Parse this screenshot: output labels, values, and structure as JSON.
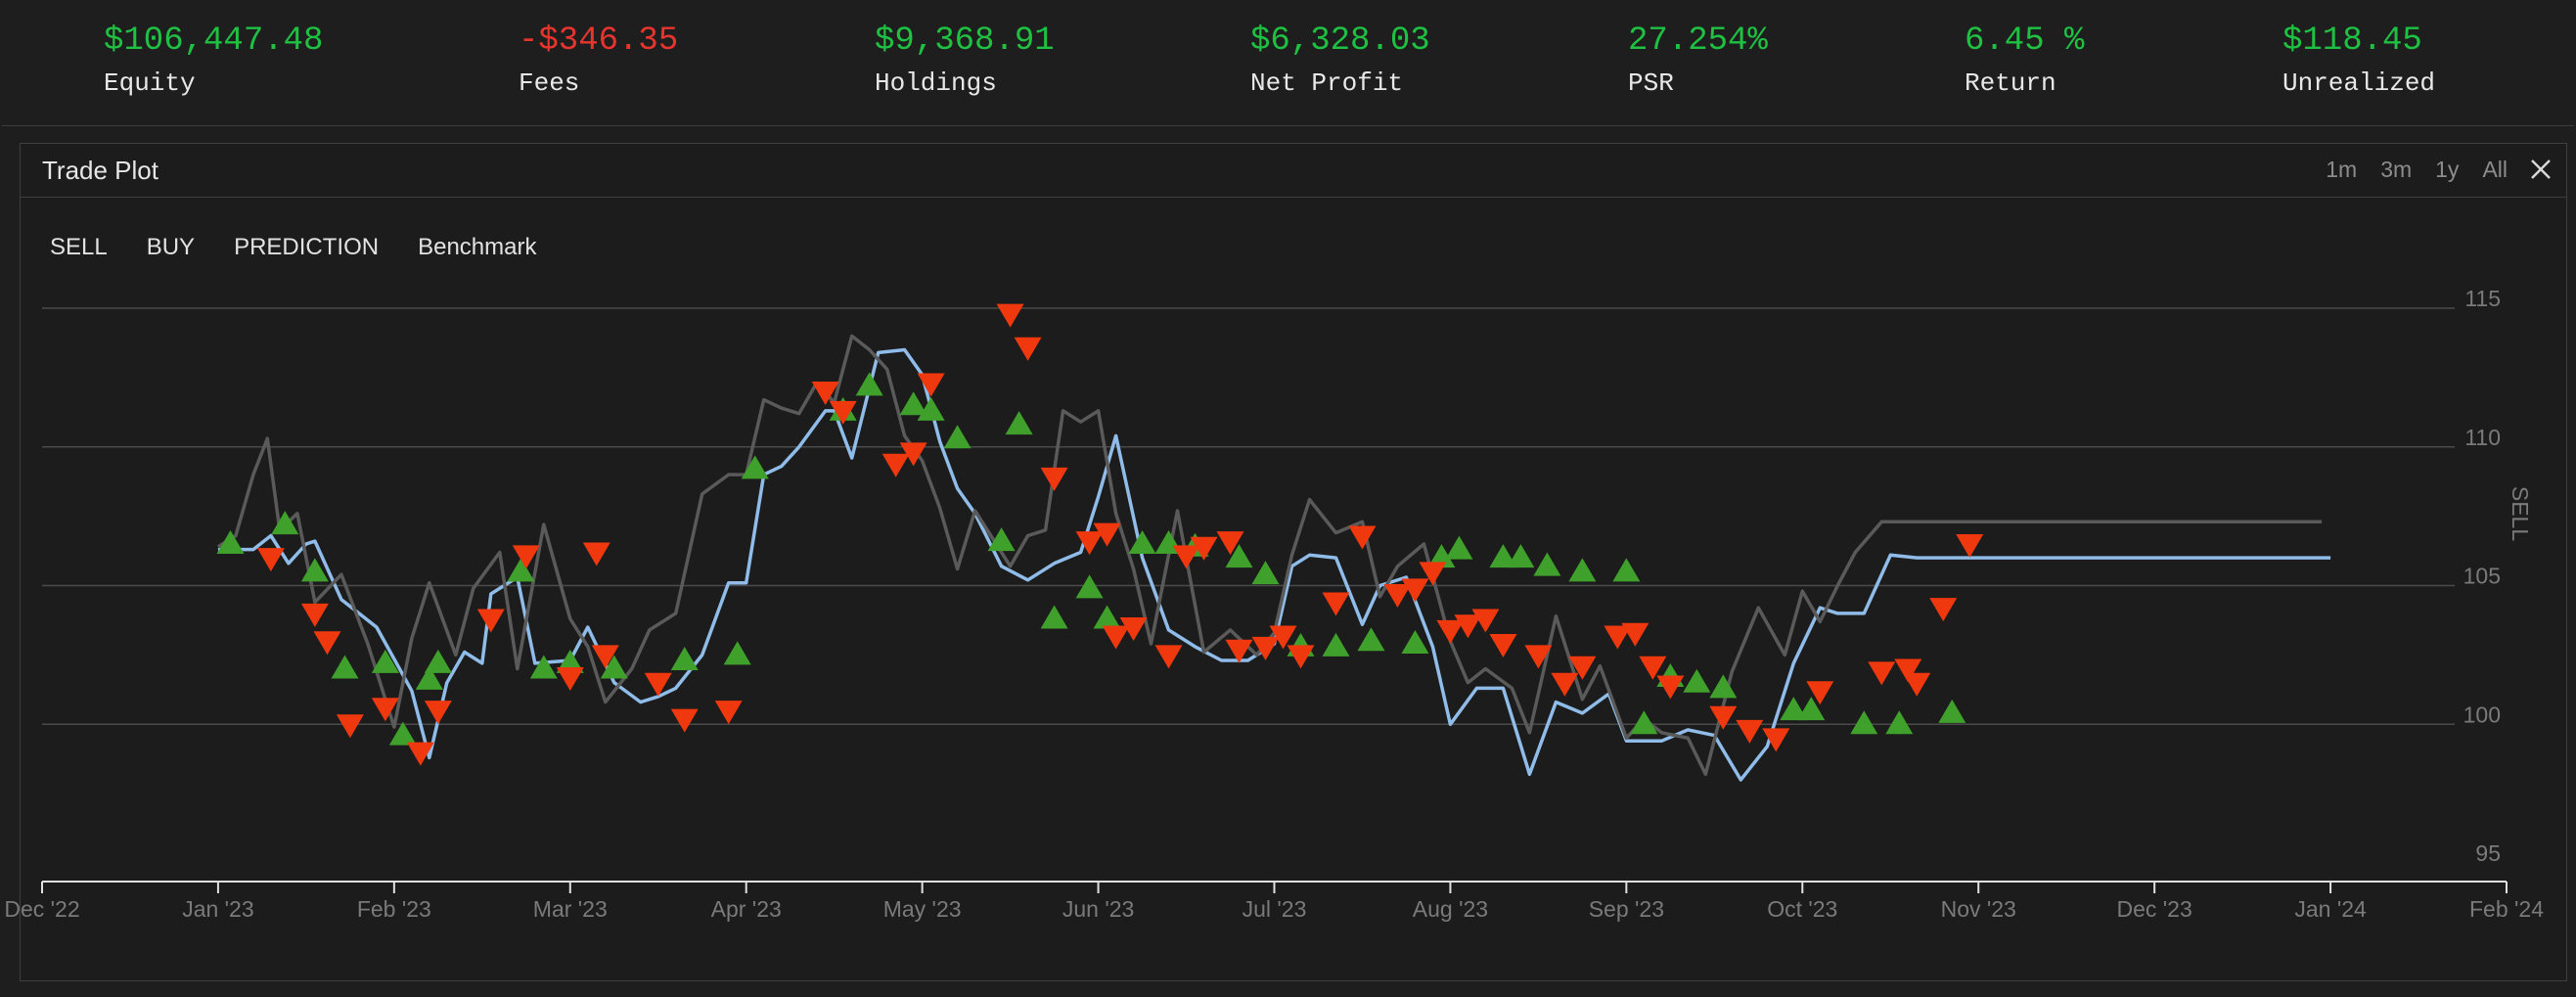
{
  "stats": [
    {
      "label": "Equity",
      "value": "$106,447.48",
      "color": "#1fc142"
    },
    {
      "label": "Fees",
      "value": "-$346.35",
      "color": "#e8342e"
    },
    {
      "label": "Holdings",
      "value": "$9,368.91",
      "color": "#1fc142"
    },
    {
      "label": "Net Profit",
      "value": "$6,328.03",
      "color": "#1fc142"
    },
    {
      "label": "PSR",
      "value": "27.254%",
      "color": "#1fc142"
    },
    {
      "label": "Return",
      "value": "6.45 %",
      "color": "#1fc142"
    },
    {
      "label": "Unrealized",
      "value": "$118.45",
      "color": "#1fc142"
    }
  ],
  "panel": {
    "title": "Trade Plot",
    "ranges": [
      "1m",
      "3m",
      "1y",
      "All"
    ],
    "close_icon": "close-icon",
    "legend": [
      "SELL",
      "BUY",
      "PREDICTION",
      "Benchmark"
    ],
    "right_axis_label": "SELL"
  },
  "chart_data": {
    "type": "line",
    "y_ticks": [
      95,
      100,
      105,
      110,
      115
    ],
    "ylim": [
      95,
      116
    ],
    "x_ticks": [
      "Dec '22",
      "Jan '23",
      "Feb '23",
      "Mar '23",
      "Apr '23",
      "May '23",
      "Jun '23",
      "Jul '23",
      "Aug '23",
      "Sep '23",
      "Oct '23",
      "Nov '23",
      "Dec '23",
      "Jan '24",
      "Feb '24"
    ],
    "grid": true,
    "colors": {
      "prediction": "#8fbce8",
      "benchmark": "#5a5a5a",
      "buy": "#3fa12b",
      "sell": "#f0380e"
    },
    "series": [
      {
        "name": "PREDICTION",
        "x": [
          1.0,
          1.2,
          1.3,
          1.4,
          1.5,
          1.55,
          1.7,
          1.9,
          2.1,
          2.2,
          2.3,
          2.4,
          2.5,
          2.55,
          2.7,
          2.8,
          3.0,
          3.1,
          3.25,
          3.4,
          3.5,
          3.6,
          3.75,
          3.9,
          4.0,
          4.1,
          4.2,
          4.3,
          4.45,
          4.5,
          4.6,
          4.75,
          4.9,
          5.0,
          5.1,
          5.2,
          5.3,
          5.45,
          5.6,
          5.75,
          5.9,
          6.0,
          6.1,
          6.25,
          6.4,
          6.55,
          6.7,
          6.85,
          7.0,
          7.1,
          7.2,
          7.35,
          7.5,
          7.6,
          7.75,
          7.9,
          8.0,
          8.15,
          8.3,
          8.45,
          8.6,
          8.75,
          8.9,
          9.0,
          9.2,
          9.35,
          9.5,
          9.65,
          9.8,
          9.95,
          10.1,
          10.2,
          10.35,
          10.5,
          10.65,
          10.75,
          10.9,
          11.0,
          11.1,
          11.25,
          11.4,
          11.5,
          11.6,
          11.75,
          11.9,
          12.0,
          12.1,
          12.25,
          12.4,
          12.5,
          12.6,
          12.75,
          12.85,
          13.0
        ],
        "y": [
          106.3,
          106.3,
          106.8,
          105.8,
          106.5,
          106.6,
          104.5,
          103.5,
          101.2,
          98.8,
          101.5,
          102.6,
          102.2,
          104.7,
          105.3,
          102.2,
          102.3,
          103.5,
          101.5,
          100.8,
          101.0,
          101.3,
          102.5,
          105.1,
          105.1,
          109.0,
          109.3,
          110.0,
          111.3,
          111.3,
          109.6,
          113.4,
          113.5,
          112.6,
          110.2,
          108.5,
          107.6,
          105.7,
          105.2,
          105.8,
          106.2,
          108.2,
          110.4,
          106.0,
          103.4,
          102.8,
          102.3,
          102.3,
          102.9,
          105.7,
          106.1,
          106.0,
          103.6,
          105.0,
          105.3,
          102.8,
          100.0,
          101.3,
          101.3,
          98.2,
          100.8,
          100.4,
          101.1,
          99.4,
          99.4,
          99.8,
          99.6,
          98.0,
          99.2,
          102.2,
          104.2,
          104.0,
          104.0,
          106.1,
          106.0,
          106.0,
          106.0,
          106.0,
          106.0,
          106.0,
          106.0,
          106.0,
          106.0,
          106.0,
          106.0,
          106.0,
          106.0,
          106.0,
          106.0,
          106.0,
          106.0,
          106.0,
          106.0,
          106.0
        ]
      },
      {
        "name": "Benchmark",
        "x": [
          1.0,
          1.1,
          1.2,
          1.28,
          1.35,
          1.45,
          1.55,
          1.7,
          1.85,
          2.0,
          2.1,
          2.2,
          2.35,
          2.45,
          2.6,
          2.7,
          2.85,
          3.0,
          3.1,
          3.2,
          3.35,
          3.45,
          3.6,
          3.75,
          3.9,
          4.0,
          4.1,
          4.2,
          4.3,
          4.4,
          4.5,
          4.6,
          4.7,
          4.8,
          4.9,
          5.0,
          5.1,
          5.2,
          5.3,
          5.4,
          5.5,
          5.6,
          5.7,
          5.8,
          5.9,
          6.0,
          6.1,
          6.2,
          6.3,
          6.45,
          6.6,
          6.75,
          6.9,
          7.0,
          7.1,
          7.2,
          7.35,
          7.5,
          7.6,
          7.7,
          7.85,
          8.0,
          8.1,
          8.2,
          8.35,
          8.45,
          8.6,
          8.75,
          8.85,
          9.0,
          9.1,
          9.2,
          9.35,
          9.45,
          9.6,
          9.75,
          9.9,
          10.0,
          10.1,
          10.2,
          10.3,
          10.45,
          10.55,
          10.7,
          10.85,
          10.95,
          11.1,
          11.25,
          11.35,
          11.5,
          11.6,
          11.75,
          11.9,
          12.0,
          12.1,
          12.25,
          12.4,
          12.5,
          12.6,
          12.75,
          12.85,
          12.95
        ],
        "y": [
          106.4,
          106.8,
          109.0,
          110.3,
          107.0,
          107.6,
          104.4,
          105.4,
          102.9,
          99.9,
          103.1,
          105.1,
          102.5,
          104.9,
          106.2,
          102.0,
          107.2,
          103.8,
          102.8,
          100.8,
          102.0,
          103.4,
          104.0,
          108.3,
          109.0,
          109.0,
          111.7,
          111.4,
          111.2,
          112.3,
          111.6,
          114.0,
          113.5,
          112.8,
          110.4,
          109.5,
          107.8,
          105.6,
          107.7,
          106.7,
          105.7,
          106.8,
          107.0,
          111.3,
          110.9,
          111.3,
          107.6,
          105.6,
          102.9,
          107.7,
          102.6,
          103.4,
          102.5,
          103.3,
          106.1,
          108.1,
          106.9,
          107.3,
          104.6,
          105.7,
          106.5,
          103.0,
          101.5,
          102.0,
          101.3,
          99.7,
          103.9,
          100.9,
          102.1,
          99.5,
          100.2,
          99.7,
          99.5,
          98.2,
          101.9,
          104.2,
          102.5,
          104.8,
          103.7,
          105.0,
          106.2,
          107.3,
          107.3,
          107.3,
          107.3,
          107.3,
          107.3,
          107.3,
          107.3,
          107.3,
          107.3,
          107.3,
          107.3,
          107.3,
          107.3,
          107.3,
          107.3,
          107.3,
          107.3,
          107.3,
          107.3,
          107.3
        ]
      },
      {
        "name": "BUY",
        "x": [
          1.07,
          1.38,
          1.55,
          1.72,
          1.95,
          2.05,
          2.2,
          2.25,
          2.72,
          2.85,
          3.0,
          3.25,
          3.65,
          3.95,
          4.05,
          4.55,
          4.7,
          4.95,
          5.05,
          5.2,
          5.45,
          5.55,
          5.75,
          5.95,
          6.05,
          6.25,
          6.4,
          6.55,
          6.8,
          6.95,
          7.15,
          7.35,
          7.55,
          7.8,
          7.95,
          8.05,
          8.3,
          8.4,
          8.55,
          8.75,
          9.0,
          9.1,
          9.25,
          9.4,
          9.55,
          9.95,
          10.05,
          10.35,
          10.55,
          10.85
        ],
        "y": [
          106.5,
          107.2,
          105.5,
          102.0,
          102.2,
          99.6,
          101.6,
          102.2,
          105.5,
          102.0,
          102.2,
          102.0,
          102.3,
          102.5,
          109.2,
          111.3,
          112.2,
          111.5,
          111.3,
          110.3,
          106.6,
          110.8,
          103.8,
          104.9,
          103.8,
          106.5,
          106.5,
          106.4,
          106.0,
          105.4,
          102.8,
          102.8,
          103.0,
          102.9,
          106.0,
          106.3,
          106.0,
          106.0,
          105.7,
          105.5,
          105.5,
          100.0,
          101.7,
          101.5,
          101.3,
          100.5,
          100.5,
          100.0,
          100.0,
          100.4
        ]
      },
      {
        "name": "SELL",
        "x": [
          1.3,
          1.55,
          1.62,
          1.75,
          1.95,
          2.15,
          2.25,
          2.55,
          2.75,
          3.0,
          3.15,
          3.2,
          3.5,
          3.65,
          3.9,
          4.45,
          4.55,
          4.85,
          4.95,
          5.05,
          5.5,
          5.6,
          5.75,
          5.95,
          6.05,
          6.1,
          6.2,
          6.4,
          6.5,
          6.6,
          6.75,
          6.8,
          6.95,
          7.05,
          7.15,
          7.35,
          7.5,
          7.7,
          7.8,
          7.9,
          8.0,
          8.1,
          8.2,
          8.3,
          8.5,
          8.65,
          8.75,
          8.95,
          9.05,
          9.15,
          9.25,
          9.55,
          9.7,
          9.85,
          10.1,
          10.45,
          10.6,
          10.65,
          10.8,
          10.95
        ],
        "y": [
          106.0,
          104.0,
          103.0,
          100.0,
          100.6,
          99.0,
          100.5,
          103.8,
          106.1,
          101.7,
          106.2,
          102.5,
          101.5,
          100.2,
          100.5,
          112.0,
          111.3,
          109.4,
          109.8,
          112.3,
          114.8,
          113.6,
          108.9,
          106.6,
          106.9,
          103.2,
          103.5,
          102.5,
          106.1,
          106.4,
          106.6,
          102.7,
          102.8,
          103.2,
          102.5,
          104.4,
          106.8,
          104.7,
          104.9,
          105.5,
          103.4,
          103.6,
          103.8,
          102.9,
          102.5,
          101.5,
          102.1,
          103.2,
          103.3,
          102.1,
          101.4,
          100.3,
          99.8,
          99.5,
          101.2,
          101.9,
          102.0,
          101.5,
          104.2,
          106.5
        ]
      }
    ]
  }
}
